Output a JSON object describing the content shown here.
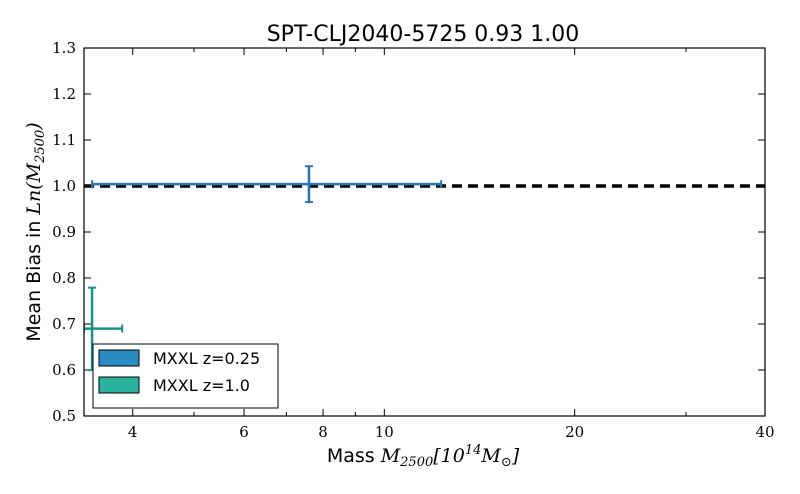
{
  "chart_data": {
    "type": "scatter",
    "title": "SPT-CLJ2040-5725 0.93 1.00",
    "xlabel": {
      "prefix": "Mass ",
      "main": "M",
      "sub": "2500",
      "rest": "[10",
      "sup": "14",
      "main2": "M",
      "sub2": "⊙",
      "end": "]"
    },
    "ylabel": {
      "prefix": "Mean Bias in ",
      "main": "Ln",
      "open": "(M",
      "sub": "2500",
      "close": ")"
    },
    "x_scale": "log",
    "xlim": [
      3.35,
      40
    ],
    "ylim": [
      0.5,
      1.3
    ],
    "x_ticks": [
      4,
      6,
      8,
      10,
      20,
      40
    ],
    "x_tick_labels": [
      "4",
      "6",
      "8",
      "10",
      "20",
      "40"
    ],
    "y_ticks": [
      0.5,
      0.6,
      0.7,
      0.8,
      0.9,
      1.0,
      1.1,
      1.2,
      1.3
    ],
    "y_tick_labels": [
      "0.5",
      "0.6",
      "0.7",
      "0.8",
      "0.9",
      "1.0",
      "1.1",
      "1.2",
      "1.3"
    ],
    "reference_line": {
      "y": 1.0,
      "style": "dashed",
      "color": "#000000"
    },
    "series": [
      {
        "name": "MXXL z=0.25",
        "color": "#1f77b4",
        "legend_color": "#2b8cc4",
        "x": 7.6,
        "y": 1.004,
        "x_err": [
          3.45,
          12.3
        ],
        "y_err": [
          0.965,
          1.043
        ]
      },
      {
        "name": "MXXL z=1.0",
        "color": "#17948a",
        "legend_color": "#2bb39e",
        "x": 3.45,
        "y": 0.69,
        "x_err": [
          3.35,
          3.85
        ],
        "y_err": [
          0.6,
          0.779
        ]
      }
    ],
    "legend_position": "lower-left",
    "grid": false
  }
}
